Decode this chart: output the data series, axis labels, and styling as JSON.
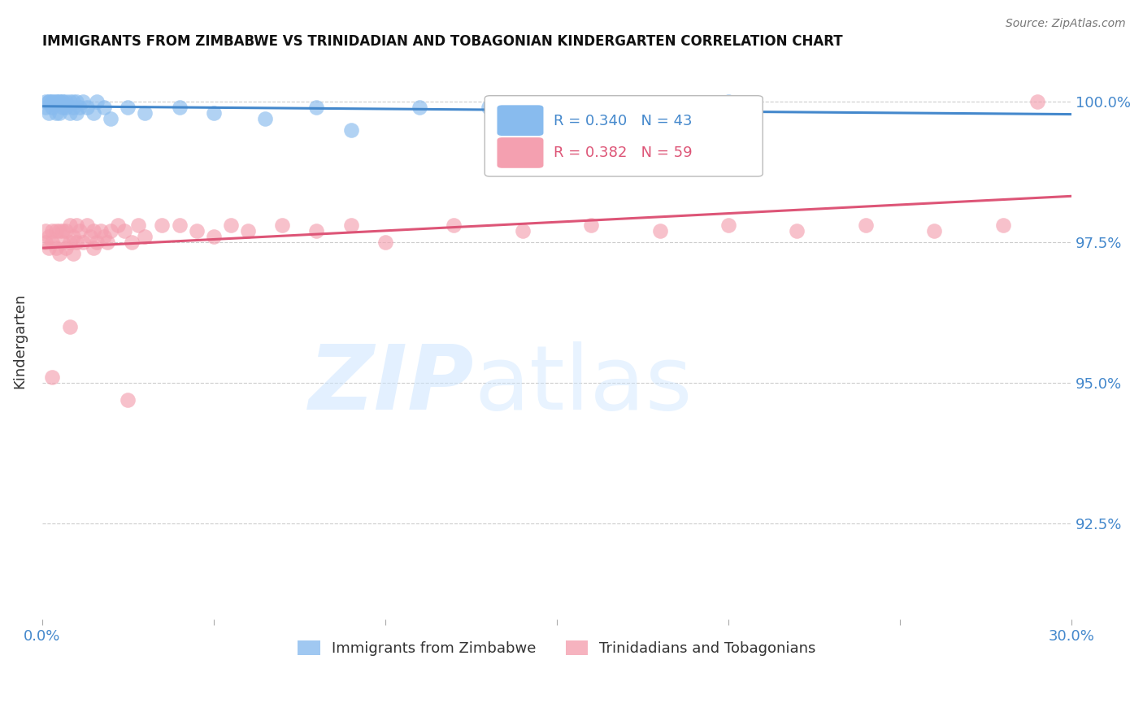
{
  "title": "IMMIGRANTS FROM ZIMBABWE VS TRINIDADIAN AND TOBAGONIAN KINDERGARTEN CORRELATION CHART",
  "source": "Source: ZipAtlas.com",
  "ylabel": "Kindergarten",
  "ytick_labels": [
    "100.0%",
    "97.5%",
    "95.0%",
    "92.5%"
  ],
  "ytick_values": [
    1.0,
    0.975,
    0.95,
    0.925
  ],
  "xlim": [
    0.0,
    0.3
  ],
  "ylim": [
    0.908,
    1.007
  ],
  "blue_R": 0.34,
  "blue_N": 43,
  "pink_R": 0.382,
  "pink_N": 59,
  "blue_color": "#88bbee",
  "pink_color": "#f4a0b0",
  "blue_line_color": "#4488cc",
  "pink_line_color": "#dd5577",
  "legend_label_blue": "Immigrants from Zimbabwe",
  "legend_label_pink": "Trinidadians and Tobagonians",
  "background_color": "#ffffff",
  "grid_color": "#cccccc",
  "axis_label_color": "#4488cc",
  "title_color": "#111111",
  "ylabel_color": "#333333",
  "source_color": "#777777"
}
